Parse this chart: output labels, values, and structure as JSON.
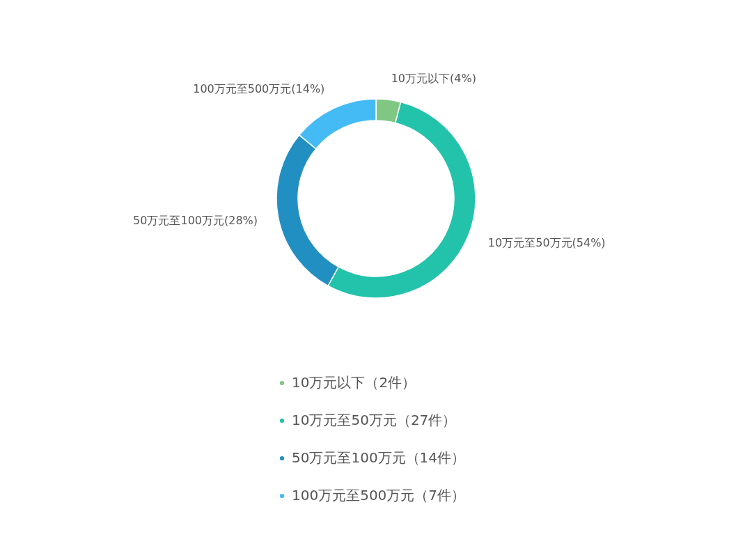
{
  "chart_data": {
    "type": "donut",
    "categories": [
      "10万元以下（2件）",
      "10万元至50万元（27件）",
      "50万元至100万元（14件）",
      "100万元至500万元（7件）"
    ],
    "values": [
      4,
      54,
      28,
      14
    ],
    "value_labels": [
      "10万元以下(4%)",
      "10万元至50万元(54%)",
      "50万元至100万元(28%)",
      "100万元至500万元(14%)"
    ],
    "colors": [
      "#81c784",
      "#22c3aa",
      "#228fc3",
      "#45bbf5"
    ],
    "legend": "bottom"
  }
}
